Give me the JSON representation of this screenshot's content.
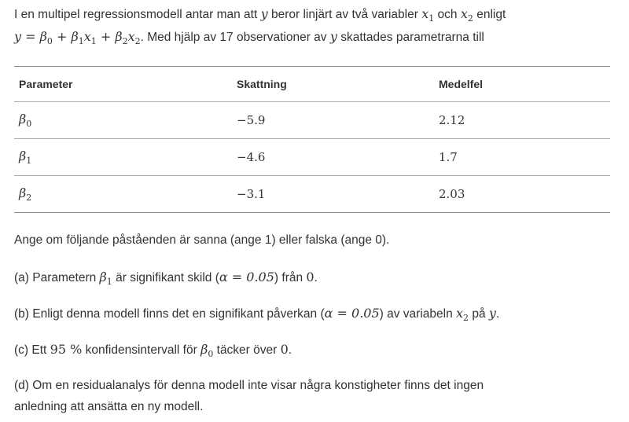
{
  "intro": {
    "l1a": "I en multipel regressionsmodell antar man att ",
    "y": "y",
    "l1b": " beror linjärt av två variabler ",
    "x": "x",
    "one": "1",
    "och": " och ",
    "two": "2",
    "enligt": " enligt",
    "eq_y": "y",
    "eq_eq": " = ",
    "beta": "β",
    "zero": "0",
    "plus": " + ",
    "l2b": ". Med hjälp av 17 observationer av ",
    "l2c": " skattades parametrarna till"
  },
  "table": {
    "headers": [
      "Parameter",
      "Skattning",
      "Medelfel"
    ],
    "rows": [
      {
        "param": "β",
        "sub": "0",
        "estimate": "−5.9",
        "se": "2.12"
      },
      {
        "param": "β",
        "sub": "1",
        "estimate": "−4.6",
        "se": "1.7"
      },
      {
        "param": "β",
        "sub": "2",
        "estimate": "−3.1",
        "se": "2.03"
      }
    ]
  },
  "instruction": "Ange om följande påståenden är sanna (ange 1) eller falska (ange 0).",
  "questions": {
    "a": {
      "pre": "(a) Parametern ",
      "sym": "β",
      "sub": "1",
      "mid": " är signifikant skild (",
      "alpha": "α = 0.05",
      "post": ") från ",
      "val": "0",
      "end": "."
    },
    "b": {
      "pre": "(b) Enligt denna modell finns det en signifikant påverkan (",
      "alpha": "α = 0.05",
      "mid": ") av variabeln ",
      "sym": "x",
      "sub": "2",
      "post": " på ",
      "y": "y",
      "end": "."
    },
    "c": {
      "pre": "(c) Ett ",
      "pct": "95 %",
      "mid": " konfidensintervall för ",
      "sym": "β",
      "sub": "0",
      "post": " täcker över ",
      "val": "0",
      "end": "."
    },
    "d": {
      "line1": "(d) Om en residualanalys för denna modell inte visar några konstigheter finns det ingen",
      "line2": "anledning att ansätta en ny modell."
    }
  }
}
